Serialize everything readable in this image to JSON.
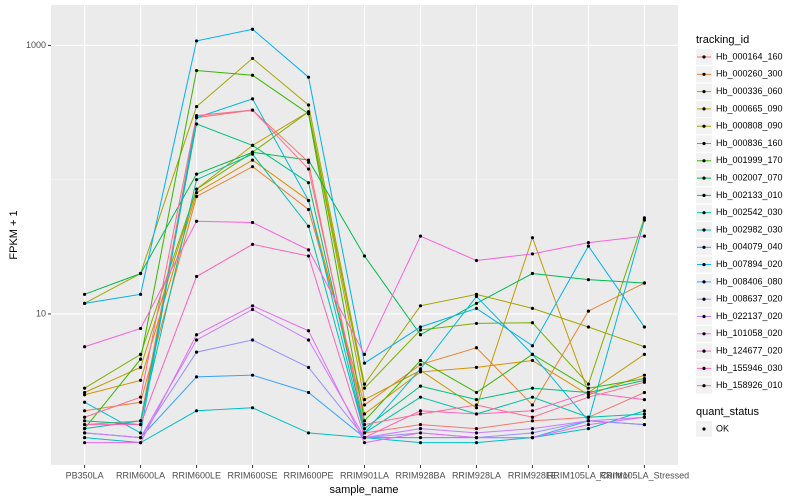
{
  "chart_data": {
    "type": "line",
    "log_y": true,
    "grid": true,
    "y_label": "FPKM + 1",
    "x_label": "sample_name",
    "legend_title": "tracking_id",
    "legend_position": "right",
    "point_legend_title": "quant_status",
    "point_legend_label": "OK",
    "point_color": "#000000",
    "categories": [
      "PB350LA",
      "RRIM600LA",
      "RRIM600LE",
      "RRIM600SE",
      "RRIM600PE",
      "RRIM901LA",
      "RRIM928BA",
      "RRIM928LA",
      "RRIM928LE",
      "RRIM105LA_Control",
      "RRIM105LA_Stressed"
    ],
    "ylim": [
      0.75,
      2000
    ],
    "yticks": [
      10,
      1000
    ],
    "series": [
      {
        "name": "Hb_000164_160",
        "color": "#F8766D",
        "values": [
          1.5,
          1.6,
          290,
          330,
          135,
          1.3,
          1.5,
          1.4,
          1.6,
          1.7,
          2.6
        ]
      },
      {
        "name": "Hb_000260_300",
        "color": "#EA8331",
        "values": [
          1.9,
          2.2,
          75,
          125,
          60,
          2.1,
          4.2,
          5.6,
          2.1,
          10.5,
          17
        ]
      },
      {
        "name": "Hb_000336_060",
        "color": "#D89000",
        "values": [
          2.5,
          3.2,
          80,
          140,
          70,
          1.8,
          3.7,
          4,
          4.5,
          2.5,
          3.5
        ]
      },
      {
        "name": "Hb_000665_090",
        "color": "#C09B00",
        "values": [
          2.6,
          4,
          85,
          180,
          320,
          2.3,
          3.8,
          2,
          37,
          2.6,
          5
        ]
      },
      {
        "name": "Hb_000808_090",
        "color": "#A3A500",
        "values": [
          12,
          20,
          350,
          800,
          360,
          3,
          11.5,
          14,
          11,
          8,
          5.7
        ]
      },
      {
        "name": "Hb_000836_160",
        "color": "#7CAE00",
        "values": [
          2.8,
          5,
          85,
          160,
          320,
          2.8,
          7.6,
          8.5,
          8.6,
          3,
          52
        ]
      },
      {
        "name": "Hb_001999_170",
        "color": "#39B600",
        "values": [
          1.4,
          4.6,
          650,
          600,
          310,
          1.6,
          4.5,
          2.6,
          5,
          2.8,
          3.3
        ]
      },
      {
        "name": "Hb_002007_070",
        "color": "#00BB4E",
        "values": [
          14,
          20,
          110,
          160,
          140,
          27,
          7,
          12,
          20,
          18,
          17
        ]
      },
      {
        "name": "Hb_002133_010",
        "color": "#00BF7D",
        "values": [
          1.6,
          1.5,
          260,
          180,
          95,
          1.4,
          2.9,
          2.3,
          2.8,
          2.6,
          3.2
        ]
      },
      {
        "name": "Hb_002542_030",
        "color": "#00C1A3",
        "values": [
          1.4,
          1.6,
          100,
          155,
          45,
          1.3,
          2.4,
          1.8,
          2.4,
          1.7,
          1.8
        ]
      },
      {
        "name": "Hb_002982_030",
        "color": "#00BFC4",
        "values": [
          1.2,
          1.1,
          1.9,
          2,
          1.3,
          1.2,
          1.1,
          1.1,
          1.2,
          1.4,
          1.9
        ]
      },
      {
        "name": "Hb_004079_040",
        "color": "#00BAE0",
        "values": [
          2.2,
          1.3,
          290,
          400,
          70,
          1.3,
          3.9,
          13.5,
          5,
          1.6,
          50
        ]
      },
      {
        "name": "Hb_007894_020",
        "color": "#00B0F6",
        "values": [
          12,
          14,
          1080,
          1320,
          580,
          4.3,
          8,
          11,
          5.8,
          32,
          8
        ]
      },
      {
        "name": "Hb_008406_080",
        "color": "#35A2FF",
        "values": [
          1.3,
          1.2,
          3.4,
          3.5,
          2.6,
          1.2,
          1.2,
          1.2,
          1.2,
          1.6,
          1.5
        ]
      },
      {
        "name": "Hb_008637_020",
        "color": "#9590FF",
        "values": [
          1.3,
          1.2,
          5.2,
          6.4,
          4,
          1.2,
          1.3,
          1.2,
          1.3,
          1.6,
          1.5
        ]
      },
      {
        "name": "Hb_022137_020",
        "color": "#C77CFF",
        "values": [
          1.3,
          1.2,
          6.4,
          10.8,
          6.4,
          1.2,
          1.4,
          1.3,
          1.4,
          1.6,
          1.7
        ]
      },
      {
        "name": "Hb_101058_020",
        "color": "#E76BF3",
        "values": [
          1.1,
          1.1,
          7,
          11.5,
          7.5,
          1.1,
          1.3,
          1.2,
          1.2,
          1.5,
          1.7
        ]
      },
      {
        "name": "Hb_124677_020",
        "color": "#FA62DB",
        "values": [
          5.7,
          7.8,
          49,
          48,
          30,
          5,
          38,
          25,
          28,
          34,
          38
        ]
      },
      {
        "name": "Hb_155946_030",
        "color": "#FF62BC",
        "values": [
          1.5,
          1.5,
          19,
          33,
          27,
          1.2,
          1.9,
          1.8,
          1.9,
          2.6,
          2.3
        ]
      },
      {
        "name": "Hb_158926_010",
        "color": "#FF6C91",
        "values": [
          1.7,
          2.4,
          300,
          330,
          120,
          1.5,
          1.8,
          2.1,
          1.7,
          2.4,
          3.1
        ]
      }
    ]
  }
}
